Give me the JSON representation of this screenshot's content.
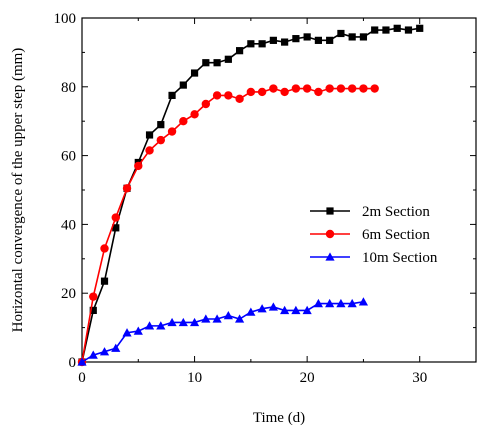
{
  "chart_data": {
    "type": "line",
    "xlabel": "Time (d)",
    "ylabel": "Horizontal convergence of the upper step (mm)",
    "xlim": [
      0,
      35
    ],
    "ylim": [
      0,
      100
    ],
    "x_ticks": [
      0,
      10,
      20,
      30
    ],
    "y_ticks": [
      0,
      20,
      40,
      60,
      80,
      100
    ],
    "legend_position": "right",
    "series": [
      {
        "name": "2m Section",
        "color": "#000000",
        "marker": "square",
        "x": [
          0,
          1,
          2,
          3,
          4,
          5,
          6,
          7,
          8,
          9,
          10,
          11,
          12,
          13,
          14,
          15,
          16,
          17,
          18,
          19,
          20,
          21,
          22,
          23,
          24,
          25,
          26,
          27,
          28,
          29,
          30
        ],
        "y": [
          0,
          15,
          23.5,
          39,
          50.5,
          58,
          66,
          69,
          77.5,
          80.5,
          84,
          87,
          87,
          88,
          90.5,
          92.5,
          92.5,
          93.5,
          93,
          94,
          94.5,
          93.5,
          93.5,
          95.5,
          94.5,
          94.5,
          96.5,
          96.5,
          97,
          96.5,
          97
        ]
      },
      {
        "name": "6m Section",
        "color": "#ff0000",
        "marker": "circle",
        "x": [
          0,
          1,
          2,
          3,
          4,
          5,
          6,
          7,
          8,
          9,
          10,
          11,
          12,
          13,
          14,
          15,
          16,
          17,
          18,
          19,
          20,
          21,
          22,
          23,
          24,
          25,
          26
        ],
        "y": [
          0,
          19,
          33,
          42,
          50.5,
          57,
          61.5,
          64.5,
          67,
          70,
          72,
          75,
          77.5,
          77.5,
          76.5,
          78.5,
          78.5,
          79.5,
          78.5,
          79.5,
          79.5,
          78.5,
          79.5,
          79.5,
          79.5,
          79.5,
          79.5
        ]
      },
      {
        "name": "10m Section",
        "color": "#0000ff",
        "marker": "triangle",
        "x": [
          0,
          1,
          2,
          3,
          4,
          5,
          6,
          7,
          8,
          9,
          10,
          11,
          12,
          13,
          14,
          15,
          16,
          17,
          18,
          19,
          20,
          21,
          22,
          23,
          24,
          25
        ],
        "y": [
          0,
          2,
          3,
          4,
          8.5,
          9,
          10.5,
          10.5,
          11.5,
          11.5,
          11.5,
          12.5,
          12.5,
          13.5,
          12.5,
          14.5,
          15.5,
          16,
          15,
          15,
          15,
          17,
          17,
          17,
          17,
          17.5
        ]
      }
    ]
  }
}
